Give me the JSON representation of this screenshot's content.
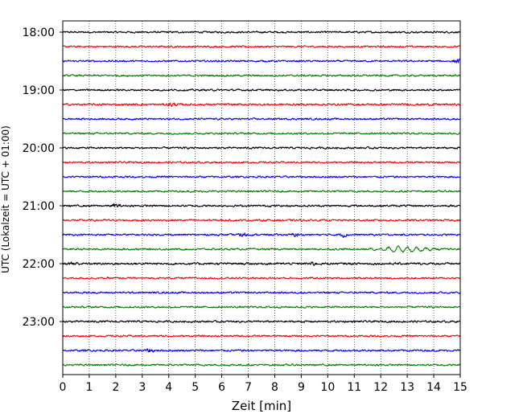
{
  "chart_data": {
    "type": "line",
    "title": "",
    "xlabel": "Zeit  [min]",
    "ylabel": "UTC (Lokalzeit = UTC + 01:00)",
    "xlim": [
      0,
      15
    ],
    "x_ticks": [
      0,
      1,
      2,
      3,
      4,
      5,
      6,
      7,
      8,
      9,
      10,
      11,
      12,
      13,
      14,
      15
    ],
    "x_tick_labels": [
      "0",
      "1",
      "2",
      "3",
      "4",
      "5",
      "6",
      "7",
      "8",
      "9",
      "10",
      "11",
      "12",
      "13",
      "14",
      "15"
    ],
    "y_tick_labels": [
      "18:00",
      "19:00",
      "20:00",
      "21:00",
      "22:00",
      "23:00"
    ],
    "trace_interval_min": 15,
    "first_trace": "18:00",
    "trace_count": 24,
    "trace_colors": [
      "#000000",
      "#ff0000",
      "#0000ff",
      "#008000"
    ],
    "grid": "vertical dotted lines at each minute",
    "legend": "none",
    "traces": [
      {
        "start": "18:00",
        "color": "#000000",
        "amplitude": 1.6,
        "events": []
      },
      {
        "start": "18:15",
        "color": "#ff0000",
        "amplitude": 1.6,
        "events": []
      },
      {
        "start": "18:30",
        "color": "#0000ff",
        "amplitude": 1.6,
        "events": [
          {
            "t": 14.9,
            "amp": 3.0
          }
        ]
      },
      {
        "start": "18:45",
        "color": "#008000",
        "amplitude": 1.6,
        "events": []
      },
      {
        "start": "19:00",
        "color": "#000000",
        "amplitude": 1.6,
        "events": []
      },
      {
        "start": "19:15",
        "color": "#ff0000",
        "amplitude": 1.8,
        "events": [
          {
            "t": 4.1,
            "amp": 2.8
          }
        ]
      },
      {
        "start": "19:30",
        "color": "#0000ff",
        "amplitude": 1.6,
        "events": []
      },
      {
        "start": "19:45",
        "color": "#008000",
        "amplitude": 1.6,
        "events": []
      },
      {
        "start": "20:00",
        "color": "#000000",
        "amplitude": 1.7,
        "events": []
      },
      {
        "start": "20:15",
        "color": "#ff0000",
        "amplitude": 1.6,
        "events": []
      },
      {
        "start": "20:30",
        "color": "#0000ff",
        "amplitude": 1.6,
        "events": []
      },
      {
        "start": "20:45",
        "color": "#008000",
        "amplitude": 1.6,
        "events": []
      },
      {
        "start": "21:00",
        "color": "#000000",
        "amplitude": 1.7,
        "events": [
          {
            "t": 2.0,
            "amp": 2.6
          }
        ]
      },
      {
        "start": "21:15",
        "color": "#ff0000",
        "amplitude": 1.7,
        "events": []
      },
      {
        "start": "21:30",
        "color": "#0000ff",
        "amplitude": 1.6,
        "events": [
          {
            "t": 6.8,
            "amp": 3.0
          },
          {
            "t": 8.8,
            "amp": 2.6
          },
          {
            "t": 10.6,
            "amp": 2.6
          }
        ]
      },
      {
        "start": "21:45",
        "color": "#008000",
        "amplitude": 1.6,
        "events": [
          {
            "t": 12.9,
            "amp": 3.4,
            "long": true
          }
        ]
      },
      {
        "start": "22:00",
        "color": "#000000",
        "amplitude": 1.9,
        "events": [
          {
            "t": 0.4,
            "amp": 3.2
          },
          {
            "t": 9.4,
            "amp": 2.6
          }
        ]
      },
      {
        "start": "22:15",
        "color": "#ff0000",
        "amplitude": 1.6,
        "events": []
      },
      {
        "start": "22:30",
        "color": "#0000ff",
        "amplitude": 1.6,
        "events": []
      },
      {
        "start": "22:45",
        "color": "#008000",
        "amplitude": 1.6,
        "events": []
      },
      {
        "start": "23:00",
        "color": "#000000",
        "amplitude": 1.7,
        "events": []
      },
      {
        "start": "23:15",
        "color": "#ff0000",
        "amplitude": 1.6,
        "events": []
      },
      {
        "start": "23:30",
        "color": "#0000ff",
        "amplitude": 1.7,
        "events": [
          {
            "t": 3.3,
            "amp": 2.6
          }
        ]
      },
      {
        "start": "23:45",
        "color": "#008000",
        "amplitude": 1.6,
        "events": []
      }
    ]
  }
}
